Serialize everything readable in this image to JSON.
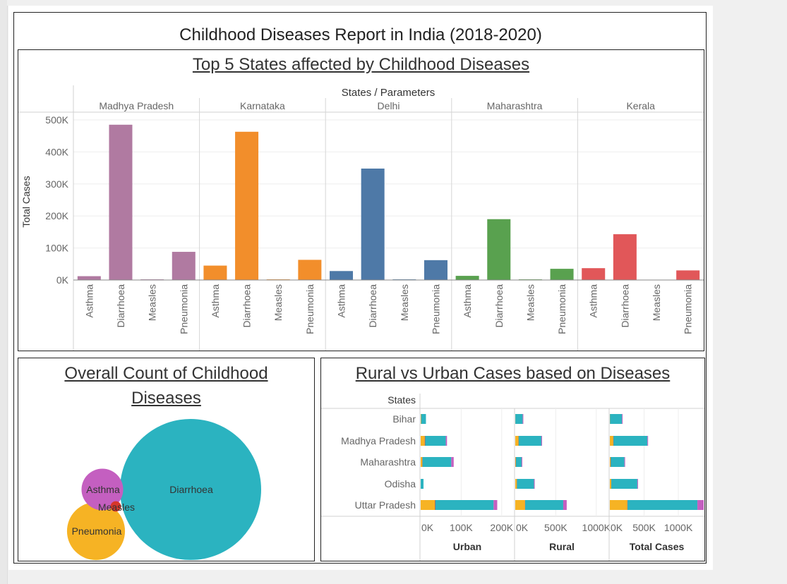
{
  "report_title": "Childhood Diseases Report in India (2018-2020)",
  "bar_panel": {
    "title": "Top 5 States affected by Childhood Diseases ",
    "header": "States  /  Parameters",
    "ylabel": "Total Cases"
  },
  "bubble_panel": {
    "title_line1": "Overall Count of  Childhood",
    "title_line2": "Diseases"
  },
  "stack_panel": {
    "title": "Rural vs Urban Cases based on Diseases",
    "row_header": "States"
  },
  "colors": {
    "Asthma": "#c45fc0",
    "Diarrhoea": "#2bb3c0",
    "Measles": "#d6362b",
    "Pneumonia": "#f6b324"
  },
  "chart_data": [
    {
      "type": "bar",
      "title": "Top 5 States affected by Childhood Diseases ",
      "xlabel": "States  /  Parameters",
      "ylabel": "Total Cases",
      "ylim": [
        0,
        500000
      ],
      "yticks": [
        0,
        100000,
        200000,
        300000,
        400000,
        500000
      ],
      "ytick_labels": [
        "0K",
        "100K",
        "200K",
        "300K",
        "400K",
        "500K"
      ],
      "categories": [
        "Asthma",
        "Diarrhoea",
        "Measles",
        "Pneumonia"
      ],
      "grid": "horizontal",
      "series": [
        {
          "name": "Madhya Pradesh",
          "color": "#b07aa1",
          "values": [
            12000,
            485000,
            2000,
            88000
          ]
        },
        {
          "name": "Karnataka",
          "color": "#f28e2b",
          "values": [
            45000,
            463000,
            2000,
            63000
          ]
        },
        {
          "name": "Delhi",
          "color": "#4e79a7",
          "values": [
            28000,
            348000,
            2000,
            62000
          ]
        },
        {
          "name": "Maharashtra",
          "color": "#59a14f",
          "values": [
            13000,
            190000,
            2000,
            35000
          ]
        },
        {
          "name": "Kerala",
          "color": "#e15759",
          "values": [
            37000,
            143000,
            0,
            30000
          ]
        }
      ]
    },
    {
      "type": "bubble",
      "title": "Overall Count of  Childhood Diseases",
      "items": [
        {
          "label": "Diarrhoea",
          "value": 1630000
        },
        {
          "label": "Pneumonia",
          "value": 275000
        },
        {
          "label": "Asthma",
          "value": 142000
        },
        {
          "label": "Measles",
          "value": 9000
        }
      ]
    },
    {
      "type": "bar",
      "orientation": "horizontal",
      "stacked": true,
      "title": "Rural vs Urban Cases based on Diseases",
      "row_header": "States",
      "categories": [
        "Bihar",
        "Madhya Pradesh",
        "Maharashtra",
        "Odisha",
        "Uttar Pradesh"
      ],
      "stack_order": [
        "Pneumonia",
        "Measles",
        "Diarrhoea",
        "Asthma"
      ],
      "panels": [
        {
          "xlabel": "Urban",
          "xlim": [
            0,
            230000
          ],
          "ticks": [
            0,
            100000,
            200000
          ],
          "tick_labels": [
            "0K",
            "100K",
            "200K"
          ],
          "series": [
            {
              "name": "Pneumonia",
              "values": [
                1000,
                10000,
                4000,
                0,
                35000
              ]
            },
            {
              "name": "Measles",
              "values": [
                0,
                1000,
                500,
                0,
                1000
              ]
            },
            {
              "name": "Diarrhoea",
              "values": [
                12000,
                51000,
                71000,
                7000,
                144000
              ]
            },
            {
              "name": "Asthma",
              "values": [
                0,
                3000,
                6000,
                0,
                9000
              ]
            }
          ]
        },
        {
          "xlabel": "Rural",
          "xlim": [
            0,
            1150000
          ],
          "ticks": [
            0,
            500000,
            1000000
          ],
          "tick_labels": [
            "0K",
            "500K",
            "1000K"
          ],
          "series": [
            {
              "name": "Pneumonia",
              "values": [
                1000,
                40000,
                6000,
                20000,
                120000
              ]
            },
            {
              "name": "Measles",
              "values": [
                0,
                2000,
                2000,
                1000,
                2000
              ]
            },
            {
              "name": "Diarrhoea",
              "values": [
                90000,
                280000,
                70000,
                210000,
                470000
              ]
            },
            {
              "name": "Asthma",
              "values": [
                4000,
                6000,
                3000,
                9000,
                43000
              ]
            }
          ]
        },
        {
          "xlabel": "Total Cases",
          "xlim": [
            0,
            1370000
          ],
          "ticks": [
            0,
            500000,
            1000000
          ],
          "tick_labels": [
            "0K",
            "500K",
            "1000K"
          ],
          "series": [
            {
              "name": "Pneumonia",
              "values": [
                2000,
                50000,
                10000,
                20000,
                255000
              ]
            },
            {
              "name": "Measles",
              "values": [
                0,
                3000,
                2500,
                1000,
                3000
              ]
            },
            {
              "name": "Diarrhoea",
              "values": [
                175000,
                495000,
                200000,
                380000,
                1020000
              ]
            },
            {
              "name": "Asthma",
              "values": [
                4000,
                9000,
                9000,
                9000,
                92000
              ]
            }
          ]
        }
      ]
    }
  ]
}
